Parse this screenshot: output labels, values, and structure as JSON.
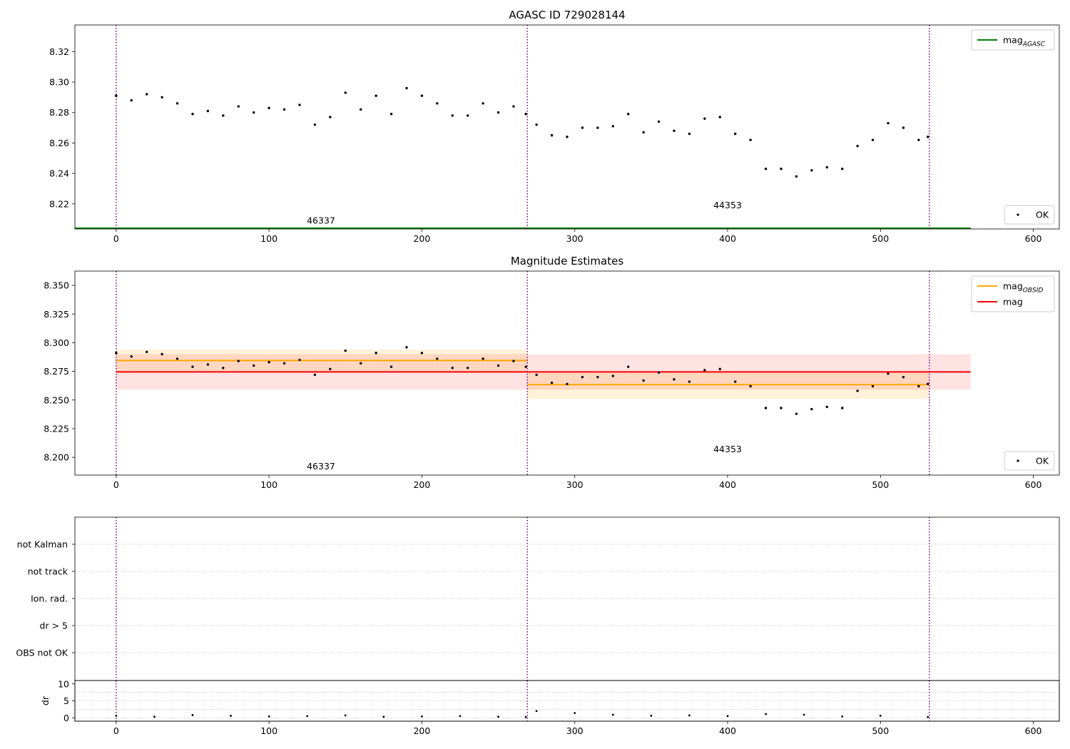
{
  "chart_data": [
    {
      "type": "scatter",
      "title": "AGASC ID 729028144",
      "xlabel": "",
      "ylabel": "",
      "xlim": [
        -27,
        617
      ],
      "ylim": [
        8.2035,
        8.3375
      ],
      "x_ticks": [
        0,
        100,
        200,
        300,
        400,
        500,
        600
      ],
      "y_ticks": [
        8.22,
        8.24,
        8.26,
        8.28,
        8.3,
        8.32
      ],
      "y_tick_labels": [
        "8.22",
        "8.24",
        "8.26",
        "8.28",
        "8.30",
        "8.32"
      ],
      "obs_boundaries": [
        0,
        269,
        532
      ],
      "obs_labels": [
        {
          "x": 134,
          "y": 8.207,
          "text": "46337"
        },
        {
          "x": 400,
          "y": 8.217,
          "text": "44353"
        }
      ],
      "lines": [
        {
          "name": "mag",
          "subscript": "AGASC",
          "color": "#008000",
          "x": [
            -27,
            559
          ],
          "y": [
            8.204,
            8.204
          ]
        }
      ],
      "legend_upper": [
        {
          "label": "mag",
          "subscript": "AGASC",
          "color": "#008000",
          "kind": "line"
        }
      ],
      "legend_lower": [
        {
          "label": "OK",
          "color": "#000000",
          "kind": "dot"
        }
      ],
      "series": [
        {
          "name": "OK",
          "color": "#000000",
          "x": [
            0,
            10,
            20,
            30,
            40,
            50,
            60,
            70,
            80,
            90,
            100,
            110,
            120,
            130,
            140,
            150,
            160,
            170,
            180,
            190,
            200,
            210,
            220,
            230,
            240,
            250,
            260,
            268,
            275,
            285,
            295,
            305,
            315,
            325,
            335,
            345,
            355,
            365,
            375,
            385,
            395,
            405,
            415,
            425,
            435,
            445,
            455,
            465,
            475,
            485,
            495,
            505,
            515,
            525,
            531
          ],
          "y": [
            8.291,
            8.288,
            8.292,
            8.29,
            8.286,
            8.279,
            8.281,
            8.278,
            8.284,
            8.28,
            8.283,
            8.282,
            8.285,
            8.272,
            8.277,
            8.293,
            8.282,
            8.291,
            8.279,
            8.296,
            8.291,
            8.286,
            8.278,
            8.278,
            8.286,
            8.28,
            8.284,
            8.279,
            8.272,
            8.265,
            8.264,
            8.27,
            8.27,
            8.271,
            8.279,
            8.267,
            8.274,
            8.268,
            8.266,
            8.276,
            8.277,
            8.266,
            8.262,
            8.243,
            8.243,
            8.238,
            8.242,
            8.244,
            8.243,
            8.258,
            8.262,
            8.273,
            8.27,
            8.262,
            8.264
          ]
        }
      ]
    },
    {
      "type": "scatter",
      "title": "Magnitude Estimates",
      "xlabel": "",
      "ylabel": "",
      "xlim": [
        -27,
        617
      ],
      "ylim": [
        8.1845,
        8.3625
      ],
      "x_ticks": [
        0,
        100,
        200,
        300,
        400,
        500,
        600
      ],
      "y_ticks": [
        8.2,
        8.225,
        8.25,
        8.275,
        8.3,
        8.325,
        8.35
      ],
      "y_tick_labels": [
        "8.200",
        "8.225",
        "8.250",
        "8.275",
        "8.300",
        "8.325",
        "8.350"
      ],
      "obs_boundaries": [
        0,
        269,
        532
      ],
      "obs_labels": [
        {
          "x": 134,
          "y": 8.1895,
          "text": "46337"
        },
        {
          "x": 400,
          "y": 8.2045,
          "text": "44353"
        }
      ],
      "bands": [
        {
          "x": [
            0,
            269
          ],
          "y": [
            8.275,
            8.294
          ],
          "color": "#ffa500",
          "opacity": 0.15
        },
        {
          "x": [
            269,
            532
          ],
          "y": [
            8.251,
            8.275
          ],
          "color": "#ffa500",
          "opacity": 0.15
        },
        {
          "x": [
            0,
            559
          ],
          "y": [
            8.259,
            8.29
          ],
          "color": "#ff0000",
          "opacity": 0.11
        }
      ],
      "lines": [
        {
          "name": "mag",
          "subscript": "OBSID",
          "color": "#ffa500",
          "x": [
            0,
            269
          ],
          "y": [
            8.2845,
            8.2845
          ]
        },
        {
          "name": "mag",
          "subscript": "OBSID",
          "color": "#ffa500",
          "x": [
            269,
            532
          ],
          "y": [
            8.2635,
            8.2635
          ]
        },
        {
          "name": "mag",
          "subscript": "",
          "color": "#ff0000",
          "x": [
            0,
            559
          ],
          "y": [
            8.2745,
            8.2745
          ]
        }
      ],
      "legend_upper": [
        {
          "label": "mag",
          "subscript": "OBSID",
          "color": "#ffa500",
          "kind": "line"
        },
        {
          "label": "mag",
          "subscript": "",
          "color": "#ff0000",
          "kind": "line"
        }
      ],
      "legend_lower": [
        {
          "label": "OK",
          "color": "#000000",
          "kind": "dot"
        }
      ],
      "series": [
        {
          "name": "OK",
          "color": "#000000",
          "x": [
            0,
            10,
            20,
            30,
            40,
            50,
            60,
            70,
            80,
            90,
            100,
            110,
            120,
            130,
            140,
            150,
            160,
            170,
            180,
            190,
            200,
            210,
            220,
            230,
            240,
            250,
            260,
            268,
            275,
            285,
            295,
            305,
            315,
            325,
            335,
            345,
            355,
            365,
            375,
            385,
            395,
            405,
            415,
            425,
            435,
            445,
            455,
            465,
            475,
            485,
            495,
            505,
            515,
            525,
            531
          ],
          "y": [
            8.291,
            8.288,
            8.292,
            8.29,
            8.286,
            8.279,
            8.281,
            8.278,
            8.284,
            8.28,
            8.283,
            8.282,
            8.285,
            8.272,
            8.277,
            8.293,
            8.282,
            8.291,
            8.279,
            8.296,
            8.291,
            8.286,
            8.278,
            8.278,
            8.286,
            8.28,
            8.284,
            8.279,
            8.272,
            8.265,
            8.264,
            8.27,
            8.27,
            8.271,
            8.279,
            8.267,
            8.274,
            8.268,
            8.266,
            8.276,
            8.277,
            8.266,
            8.262,
            8.243,
            8.243,
            8.238,
            8.242,
            8.244,
            8.243,
            8.258,
            8.262,
            8.273,
            8.27,
            8.262,
            8.264
          ]
        }
      ]
    },
    {
      "type": "table",
      "title": "",
      "xlim": [
        -27,
        617
      ],
      "obs_boundaries": [
        0,
        269,
        532
      ],
      "flag_rows": [
        "not Kalman",
        "not track",
        "Ion. rad.",
        "dr > 5",
        "OBS not OK"
      ],
      "flag_points": []
    },
    {
      "type": "scatter",
      "title": "",
      "xlabel": "",
      "ylabel": "dr",
      "xlim": [
        -27,
        617
      ],
      "ylim": [
        -1,
        11
      ],
      "x_ticks": [
        0,
        100,
        200,
        300,
        400,
        500,
        600
      ],
      "y_ticks": [
        0,
        5,
        10
      ],
      "y_tick_labels": [
        "0",
        "5",
        "10"
      ],
      "obs_boundaries": [
        0,
        269,
        532
      ],
      "series": [
        {
          "name": "dr",
          "color": "#000000",
          "x": [
            0,
            25,
            50,
            75,
            100,
            125,
            150,
            175,
            200,
            225,
            250,
            268,
            275,
            300,
            325,
            350,
            375,
            400,
            425,
            450,
            475,
            500,
            531
          ],
          "y": [
            0.6,
            0.3,
            0.8,
            0.6,
            0.4,
            0.5,
            0.7,
            0.3,
            0.4,
            0.5,
            0.3,
            0.2,
            2.0,
            1.4,
            0.9,
            0.6,
            0.7,
            0.5,
            1.1,
            0.9,
            0.4,
            0.6,
            0.2
          ]
        }
      ]
    }
  ]
}
